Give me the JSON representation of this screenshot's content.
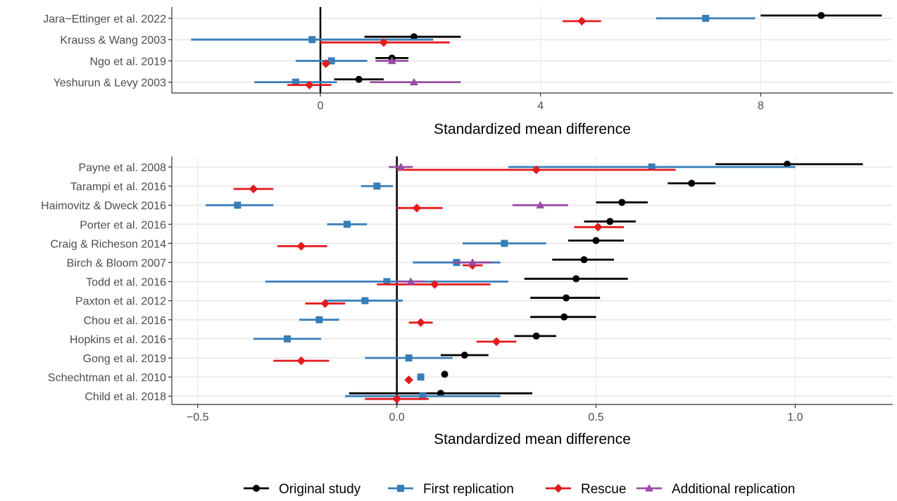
{
  "chart_data": [
    {
      "type": "forest",
      "xlabel": "Standardized mean difference",
      "xlim": [
        -2.7,
        10.4
      ],
      "xticks": [
        0,
        4,
        8
      ],
      "reference_line": 0,
      "studies": [
        "Jara−Ettinger et al. 2022",
        "Krauss & Wang 2003",
        "Ngo et al. 2019",
        "Yeshurun & Levy 2003"
      ],
      "series": [
        {
          "name": "Original study",
          "color": "#000000",
          "points": [
            {
              "study": 0,
              "est": 9.1,
              "lo": 8.0,
              "hi": 10.2
            },
            {
              "study": 1,
              "est": 1.7,
              "lo": 0.8,
              "hi": 2.55
            },
            {
              "study": 2,
              "est": 1.3,
              "lo": 1.0,
              "hi": 1.6
            },
            {
              "study": 3,
              "est": 0.7,
              "lo": 0.25,
              "hi": 1.15
            }
          ]
        },
        {
          "name": "First replication",
          "color": "#377eb8",
          "points": [
            {
              "study": 0,
              "est": 7.0,
              "lo": 6.1,
              "hi": 7.9
            },
            {
              "study": 1,
              "est": -0.15,
              "lo": -2.35,
              "hi": 2.05
            },
            {
              "study": 2,
              "est": 0.2,
              "lo": -0.45,
              "hi": 0.85
            },
            {
              "study": 3,
              "est": -0.45,
              "lo": -1.2,
              "hi": 0.3
            }
          ]
        },
        {
          "name": "Rescue",
          "color": "#e41a1c",
          "points": [
            {
              "study": 0,
              "est": 4.75,
              "lo": 4.4,
              "hi": 5.1
            },
            {
              "study": 1,
              "est": 1.15,
              "lo": 0.0,
              "hi": 2.35
            },
            {
              "study": 2,
              "est": 0.1,
              "lo": 0.05,
              "hi": 0.15
            },
            {
              "study": 3,
              "est": -0.2,
              "lo": -0.6,
              "hi": 0.2
            }
          ]
        },
        {
          "name": "Additional replication",
          "color": "#984ea3",
          "points": [
            {
              "study": 2,
              "est": 1.3,
              "lo": 1.0,
              "hi": 1.6
            },
            {
              "study": 3,
              "est": 1.7,
              "lo": 0.9,
              "hi": 2.55
            }
          ]
        }
      ]
    },
    {
      "type": "forest",
      "xlabel": "Standardized mean difference",
      "xlim": [
        -0.565,
        1.245
      ],
      "xticks": [
        -0.5,
        0.0,
        0.5,
        1.0
      ],
      "xtick_labels": [
        "−0.5",
        "0.0",
        "0.5",
        "1.0"
      ],
      "reference_line": 0,
      "studies": [
        "Payne et al. 2008",
        "Tarampi et al. 2016",
        "Haimovitz & Dweck 2016",
        "Porter et al. 2016",
        "Craig & Richeson 2014",
        "Birch & Bloom 2007",
        "Todd et al. 2016",
        "Paxton et al. 2012",
        "Chou et al. 2016",
        "Hopkins et al. 2016",
        "Gong et al. 2019",
        "Schechtman et al. 2010",
        "Child et al. 2018"
      ],
      "series": [
        {
          "name": "Original study",
          "color": "#000000",
          "points": [
            {
              "study": 0,
              "est": 0.98,
              "lo": 0.8,
              "hi": 1.17
            },
            {
              "study": 1,
              "est": 0.74,
              "lo": 0.68,
              "hi": 0.8
            },
            {
              "study": 2,
              "est": 0.565,
              "lo": 0.5,
              "hi": 0.63
            },
            {
              "study": 3,
              "est": 0.535,
              "lo": 0.47,
              "hi": 0.6
            },
            {
              "study": 4,
              "est": 0.5,
              "lo": 0.43,
              "hi": 0.57
            },
            {
              "study": 5,
              "est": 0.47,
              "lo": 0.39,
              "hi": 0.545
            },
            {
              "study": 6,
              "est": 0.45,
              "lo": 0.32,
              "hi": 0.58
            },
            {
              "study": 7,
              "est": 0.425,
              "lo": 0.335,
              "hi": 0.51
            },
            {
              "study": 8,
              "est": 0.42,
              "lo": 0.335,
              "hi": 0.5
            },
            {
              "study": 9,
              "est": 0.35,
              "lo": 0.295,
              "hi": 0.4
            },
            {
              "study": 10,
              "est": 0.17,
              "lo": 0.11,
              "hi": 0.23
            },
            {
              "study": 11,
              "est": 0.12,
              "lo": 0.12,
              "hi": 0.12
            },
            {
              "study": 12,
              "est": 0.11,
              "lo": -0.12,
              "hi": 0.34
            }
          ]
        },
        {
          "name": "First replication",
          "color": "#377eb8",
          "points": [
            {
              "study": 0,
              "est": 0.64,
              "lo": 0.28,
              "hi": 1.0
            },
            {
              "study": 1,
              "est": -0.05,
              "lo": -0.09,
              "hi": -0.01
            },
            {
              "study": 2,
              "est": -0.4,
              "lo": -0.48,
              "hi": -0.31
            },
            {
              "study": 3,
              "est": -0.125,
              "lo": -0.175,
              "hi": -0.075
            },
            {
              "study": 4,
              "est": 0.27,
              "lo": 0.165,
              "hi": 0.375
            },
            {
              "study": 5,
              "est": 0.15,
              "lo": 0.04,
              "hi": 0.26
            },
            {
              "study": 6,
              "est": -0.025,
              "lo": -0.33,
              "hi": 0.28
            },
            {
              "study": 7,
              "est": -0.08,
              "lo": -0.18,
              "hi": 0.015
            },
            {
              "study": 8,
              "est": -0.195,
              "lo": -0.245,
              "hi": -0.145
            },
            {
              "study": 9,
              "est": -0.275,
              "lo": -0.36,
              "hi": -0.19
            },
            {
              "study": 10,
              "est": 0.03,
              "lo": -0.08,
              "hi": 0.14
            },
            {
              "study": 11,
              "est": 0.06,
              "lo": 0.06,
              "hi": 0.06
            },
            {
              "study": 12,
              "est": 0.065,
              "lo": -0.13,
              "hi": 0.26
            }
          ]
        },
        {
          "name": "Rescue",
          "color": "#e41a1c",
          "points": [
            {
              "study": 0,
              "est": 0.35,
              "lo": 0.0,
              "hi": 0.7
            },
            {
              "study": 1,
              "est": -0.36,
              "lo": -0.41,
              "hi": -0.31
            },
            {
              "study": 2,
              "est": 0.05,
              "lo": 0.0,
              "hi": 0.115
            },
            {
              "study": 3,
              "est": 0.505,
              "lo": 0.445,
              "hi": 0.57
            },
            {
              "study": 4,
              "est": -0.24,
              "lo": -0.3,
              "hi": -0.175
            },
            {
              "study": 5,
              "est": 0.19,
              "lo": 0.165,
              "hi": 0.215
            },
            {
              "study": 6,
              "est": 0.095,
              "lo": -0.05,
              "hi": 0.235
            },
            {
              "study": 7,
              "est": -0.18,
              "lo": -0.23,
              "hi": -0.13
            },
            {
              "study": 8,
              "est": 0.06,
              "lo": 0.03,
              "hi": 0.09
            },
            {
              "study": 9,
              "est": 0.25,
              "lo": 0.2,
              "hi": 0.3
            },
            {
              "study": 10,
              "est": -0.24,
              "lo": -0.31,
              "hi": -0.17
            },
            {
              "study": 11,
              "est": 0.03,
              "lo": 0.03,
              "hi": 0.03
            },
            {
              "study": 12,
              "est": 0.0,
              "lo": -0.08,
              "hi": 0.08
            }
          ]
        },
        {
          "name": "Additional replication",
          "color": "#984ea3",
          "points": [
            {
              "study": 0,
              "est": 0.01,
              "lo": -0.02,
              "hi": 0.04
            },
            {
              "study": 2,
              "est": 0.36,
              "lo": 0.29,
              "hi": 0.43
            },
            {
              "study": 5,
              "est": 0.19,
              "lo": 0.14,
              "hi": 0.24
            },
            {
              "study": 6,
              "est": 0.035,
              "lo": 0.0,
              "hi": 0.07
            }
          ]
        }
      ]
    }
  ],
  "legend": {
    "placement": "bottom",
    "items": [
      {
        "name": "Original study",
        "color": "#000000",
        "shape": "circle"
      },
      {
        "name": "First replication",
        "color": "#377eb8",
        "shape": "square"
      },
      {
        "name": "Rescue",
        "color": "#e41a1c",
        "shape": "diamond"
      },
      {
        "name": "Additional replication",
        "color": "#984ea3",
        "shape": "triangle"
      }
    ]
  }
}
